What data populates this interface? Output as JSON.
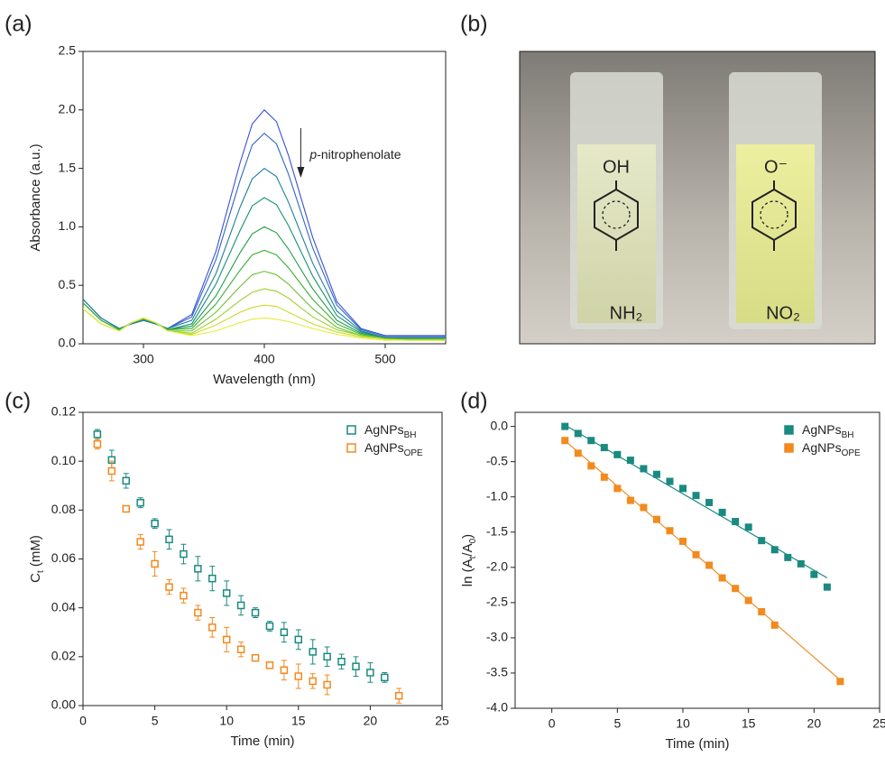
{
  "photo": {
    "panel_label": "(b)",
    "left": {
      "top": "OH",
      "bottom": "NH₂"
    },
    "right": {
      "top": "O⁻",
      "bottom": "NO₂"
    }
  },
  "chart_data": [
    {
      "type": "line",
      "panel_label": "(a)",
      "xlabel": "Wavelength (nm)",
      "ylabel": "Absorbance (a.u.)",
      "annotation_parts": [
        "p",
        "-nitrophenolate"
      ],
      "x": [
        250,
        265,
        280,
        290,
        300,
        310,
        320,
        340,
        360,
        380,
        390,
        400,
        410,
        420,
        440,
        460,
        480,
        500,
        520,
        550
      ],
      "xlim": [
        250,
        550
      ],
      "xticks": [
        300,
        400,
        500
      ],
      "ylim": [
        0,
        2.5
      ],
      "yticks": [
        {
          "value": 0,
          "label": "0.0"
        },
        {
          "value": 0.5,
          "label": "0.5"
        },
        {
          "value": 1,
          "label": "1.0"
        },
        {
          "value": 1.5,
          "label": "1.5"
        },
        {
          "value": 2,
          "label": "2.0"
        },
        {
          "value": 2.5,
          "label": "2.5"
        }
      ],
      "series": [
        {
          "color": "#3a4fd8",
          "values": [
            0.38,
            0.22,
            0.13,
            0.17,
            0.2,
            0.17,
            0.13,
            0.25,
            0.79,
            1.55,
            1.88,
            2.0,
            1.9,
            1.61,
            0.91,
            0.36,
            0.13,
            0.07,
            0.07,
            0.07
          ]
        },
        {
          "color": "#2f67c4",
          "values": [
            0.38,
            0.22,
            0.13,
            0.17,
            0.2,
            0.17,
            0.13,
            0.23,
            0.72,
            1.4,
            1.7,
            1.8,
            1.71,
            1.45,
            0.82,
            0.33,
            0.12,
            0.06,
            0.06,
            0.06
          ]
        },
        {
          "color": "#1f7f9c",
          "values": [
            0.38,
            0.22,
            0.13,
            0.17,
            0.2,
            0.17,
            0.13,
            0.2,
            0.6,
            1.17,
            1.41,
            1.5,
            1.43,
            1.21,
            0.69,
            0.28,
            0.11,
            0.05,
            0.05,
            0.05
          ]
        },
        {
          "color": "#14916f",
          "values": [
            0.35,
            0.2,
            0.12,
            0.18,
            0.21,
            0.18,
            0.12,
            0.17,
            0.51,
            0.97,
            1.18,
            1.25,
            1.19,
            1.01,
            0.58,
            0.24,
            0.1,
            0.05,
            0.05,
            0.05
          ]
        },
        {
          "color": "#1e9e46",
          "values": [
            0.35,
            0.2,
            0.12,
            0.18,
            0.21,
            0.18,
            0.12,
            0.15,
            0.41,
            0.78,
            0.94,
            1.0,
            0.95,
            0.81,
            0.47,
            0.2,
            0.09,
            0.05,
            0.04,
            0.04
          ]
        },
        {
          "color": "#3aae35",
          "values": [
            0.35,
            0.2,
            0.12,
            0.18,
            0.21,
            0.18,
            0.12,
            0.13,
            0.34,
            0.63,
            0.76,
            0.8,
            0.76,
            0.65,
            0.38,
            0.17,
            0.08,
            0.04,
            0.04,
            0.04
          ]
        },
        {
          "color": "#6cc030",
          "values": [
            0.3,
            0.17,
            0.11,
            0.18,
            0.22,
            0.18,
            0.11,
            0.11,
            0.27,
            0.49,
            0.59,
            0.62,
            0.59,
            0.51,
            0.3,
            0.14,
            0.07,
            0.04,
            0.04,
            0.04
          ]
        },
        {
          "color": "#9dd02c",
          "values": [
            0.3,
            0.17,
            0.11,
            0.18,
            0.22,
            0.18,
            0.11,
            0.09,
            0.21,
            0.37,
            0.44,
            0.47,
            0.45,
            0.39,
            0.23,
            0.12,
            0.07,
            0.04,
            0.03,
            0.03
          ]
        },
        {
          "color": "#c8dd2a",
          "values": [
            0.3,
            0.17,
            0.11,
            0.18,
            0.22,
            0.18,
            0.11,
            0.08,
            0.16,
            0.27,
            0.31,
            0.33,
            0.32,
            0.27,
            0.17,
            0.1,
            0.06,
            0.04,
            0.03,
            0.03
          ]
        },
        {
          "color": "#e8ea3a",
          "values": [
            0.3,
            0.17,
            0.11,
            0.18,
            0.22,
            0.18,
            0.11,
            0.07,
            0.11,
            0.18,
            0.21,
            0.22,
            0.21,
            0.19,
            0.13,
            0.08,
            0.05,
            0.03,
            0.03,
            0.03
          ]
        }
      ]
    },
    {
      "type": "errorbar",
      "panel_label": "(c)",
      "xlabel": "Time (min)",
      "ylabel_parts": [
        {
          "text": "C"
        },
        {
          "text": "t",
          "sub": true
        },
        {
          "text": " (mM)"
        }
      ],
      "xlim": [
        0,
        25
      ],
      "xticks": [
        0,
        5,
        10,
        15,
        20,
        25
      ],
      "ylim": [
        0,
        0.12
      ],
      "yticks": [
        {
          "value": 0,
          "label": "0.00"
        },
        {
          "value": 0.02,
          "label": "0.02"
        },
        {
          "value": 0.04,
          "label": "0.04"
        },
        {
          "value": 0.06,
          "label": "0.06"
        },
        {
          "value": 0.08,
          "label": "0.08"
        },
        {
          "value": 0.1,
          "label": "0.10"
        },
        {
          "value": 0.12,
          "label": "0.12"
        }
      ],
      "series": [
        {
          "name": "AgNPs",
          "name_sub": "BH",
          "color": "#1a8a80",
          "x": [
            1,
            2,
            3,
            4,
            5,
            6,
            7,
            8,
            9,
            10,
            11,
            12,
            13,
            14,
            15,
            16,
            17,
            18,
            19,
            20,
            21
          ],
          "values": [
            0.111,
            0.1005,
            0.092,
            0.083,
            0.0745,
            0.068,
            0.062,
            0.056,
            0.052,
            0.046,
            0.041,
            0.038,
            0.0325,
            0.03,
            0.027,
            0.022,
            0.02,
            0.018,
            0.016,
            0.0135,
            0.0115
          ],
          "errors": [
            0.002,
            0.004,
            0.003,
            0.002,
            0.002,
            0.004,
            0.004,
            0.005,
            0.005,
            0.005,
            0.004,
            0.002,
            0.002,
            0.004,
            0.004,
            0.005,
            0.004,
            0.003,
            0.004,
            0.004,
            0.002
          ]
        },
        {
          "name": "AgNPs",
          "name_sub": "OPE",
          "color": "#f28a1e",
          "x": [
            1,
            2,
            3,
            4,
            5,
            6,
            7,
            8,
            9,
            10,
            11,
            12,
            13,
            14,
            15,
            16,
            17,
            22
          ],
          "values": [
            0.107,
            0.096,
            0.0805,
            0.067,
            0.058,
            0.0485,
            0.045,
            0.038,
            0.032,
            0.027,
            0.023,
            0.0195,
            0.0165,
            0.0145,
            0.012,
            0.01,
            0.0085,
            0.004
          ],
          "errors": [
            0.002,
            0.004,
            0.001,
            0.003,
            0.005,
            0.003,
            0.003,
            0.003,
            0.004,
            0.005,
            0.003,
            0.001,
            0.001,
            0.004,
            0.005,
            0.003,
            0.004,
            0.003
          ]
        }
      ]
    },
    {
      "type": "scatter",
      "panel_label": "(d)",
      "xlabel": "Time (min)",
      "ylabel_parts": [
        {
          "text": "ln (A"
        },
        {
          "text": "t",
          "sub": true
        },
        {
          "text": "/A"
        },
        {
          "text": "0",
          "sub": true
        },
        {
          "text": ")"
        }
      ],
      "xlim": [
        -2.8,
        25
      ],
      "xticks": [
        0,
        5,
        10,
        15,
        20,
        25
      ],
      "ylim": [
        -4,
        0.2
      ],
      "yticks": [
        {
          "value": -4,
          "label": "-4.0"
        },
        {
          "value": -3.5,
          "label": "-3.5"
        },
        {
          "value": -3,
          "label": "-3.0"
        },
        {
          "value": -2.5,
          "label": "-2.5"
        },
        {
          "value": -2,
          "label": "-2.0"
        },
        {
          "value": -1.5,
          "label": "-1.5"
        },
        {
          "value": -1,
          "label": "-1.0"
        },
        {
          "value": -0.5,
          "label": "-0.5"
        },
        {
          "value": 0,
          "label": "0.0"
        }
      ],
      "series": [
        {
          "name": "AgNPs",
          "name_sub": "BH",
          "color": "#1a8a80",
          "x": [
            1,
            2,
            3,
            4,
            5,
            6,
            7,
            8,
            9,
            10,
            11,
            12,
            13,
            14,
            15,
            16,
            17,
            18,
            19,
            20,
            21
          ],
          "values": [
            0,
            -0.1,
            -0.2,
            -0.3,
            -0.4,
            -0.48,
            -0.6,
            -0.68,
            -0.78,
            -0.88,
            -0.98,
            -1.08,
            -1.22,
            -1.35,
            -1.43,
            -1.62,
            -1.75,
            -1.86,
            -1.95,
            -2.1,
            -2.28
          ],
          "fit_x": [
            1,
            21
          ],
          "fit_values": [
            0.02,
            -2.15
          ]
        },
        {
          "name": "AgNPs",
          "name_sub": "OPE",
          "color": "#f28a1e",
          "x": [
            1,
            2,
            3,
            4,
            5,
            6,
            7,
            8,
            9,
            10,
            11,
            12,
            13,
            14,
            15,
            16,
            17,
            22
          ],
          "values": [
            -0.2,
            -0.38,
            -0.56,
            -0.72,
            -0.88,
            -1.05,
            -1.15,
            -1.32,
            -1.48,
            -1.63,
            -1.82,
            -1.97,
            -2.15,
            -2.3,
            -2.47,
            -2.63,
            -2.82,
            -3.62
          ],
          "fit_x": [
            1,
            22
          ],
          "fit_values": [
            -0.2,
            -3.6
          ]
        }
      ]
    }
  ]
}
